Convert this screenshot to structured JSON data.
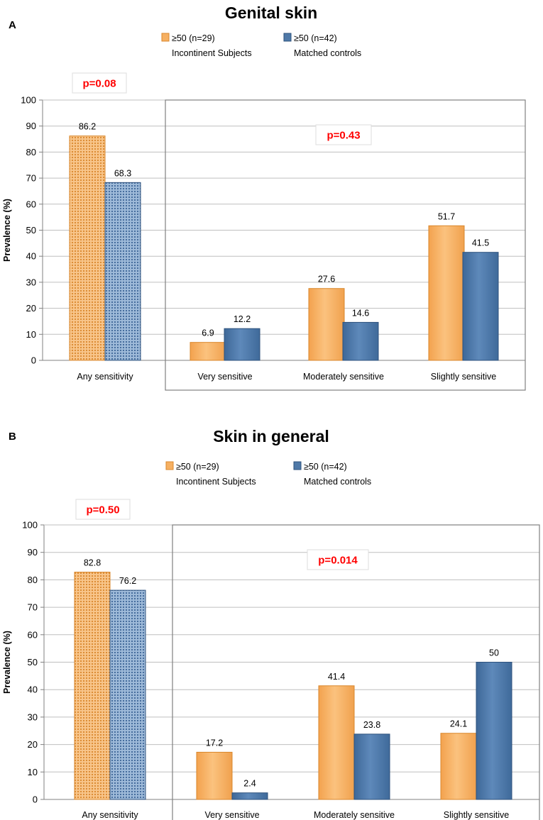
{
  "colors": {
    "orange": "#F6B062",
    "orange_dark": "#D9872C",
    "blue": "#4F79A8",
    "blue_dark": "#2E527D",
    "grid": "#BFBFBF",
    "axis": "#808080",
    "pvalue": "#FF0000"
  },
  "legend_icons": {
    "subjects": "orange-square-icon",
    "controls": "blue-square-icon"
  },
  "chart_data": [
    {
      "type": "bar",
      "panel_label": "A",
      "title": "Genital skin",
      "ylabel": "Prevalence (%)",
      "xlabel": "",
      "ylim": [
        0,
        100
      ],
      "yticks": [
        "0",
        "10",
        "20",
        "30",
        "40",
        "50",
        "60",
        "70",
        "80",
        "90",
        "100"
      ],
      "grid": true,
      "legend_position": "top-center",
      "categories": [
        "Any sensitivity",
        "Very sensitive",
        "Moderately sensitive",
        "Slightly sensitive"
      ],
      "series": [
        {
          "name": "≥50 (n=29)",
          "subtitle": "Incontinent Subjects",
          "values": [
            86.2,
            6.9,
            27.6,
            51.7
          ],
          "labels": [
            "86.2",
            "6.9",
            "27.6",
            "51.7"
          ]
        },
        {
          "name": "≥50 (n=42)",
          "subtitle": "Matched controls",
          "values": [
            68.3,
            12.2,
            14.6,
            41.5
          ],
          "labels": [
            "68.3",
            "12.2",
            "14.6",
            "41.5"
          ]
        }
      ],
      "annotations": {
        "p_any": "p=0.08",
        "p_levels": "p=0.43"
      }
    },
    {
      "type": "bar",
      "panel_label": "B",
      "title": "Skin in general",
      "ylabel": "Prevalence (%)",
      "xlabel": "",
      "ylim": [
        0,
        100
      ],
      "yticks": [
        "0",
        "10",
        "20",
        "30",
        "40",
        "50",
        "60",
        "70",
        "80",
        "90",
        "100"
      ],
      "grid": true,
      "legend_position": "top-center",
      "categories": [
        "Any sensitivity",
        "Very sensitive",
        "Moderately sensitive",
        "Slightly sensitive"
      ],
      "series": [
        {
          "name": "≥50 (n=29)",
          "subtitle": "Incontinent Subjects",
          "values": [
            82.8,
            17.2,
            41.4,
            24.1
          ],
          "labels": [
            "82.8",
            "17.2",
            "41.4",
            "24.1"
          ]
        },
        {
          "name": "≥50 (n=42)",
          "subtitle": "Matched controls",
          "values": [
            76.2,
            2.4,
            23.8,
            50
          ],
          "labels": [
            "76.2",
            "2.4",
            "23.8",
            "50"
          ]
        }
      ],
      "annotations": {
        "p_any": "p=0.50",
        "p_levels": "p=0.014"
      }
    }
  ]
}
